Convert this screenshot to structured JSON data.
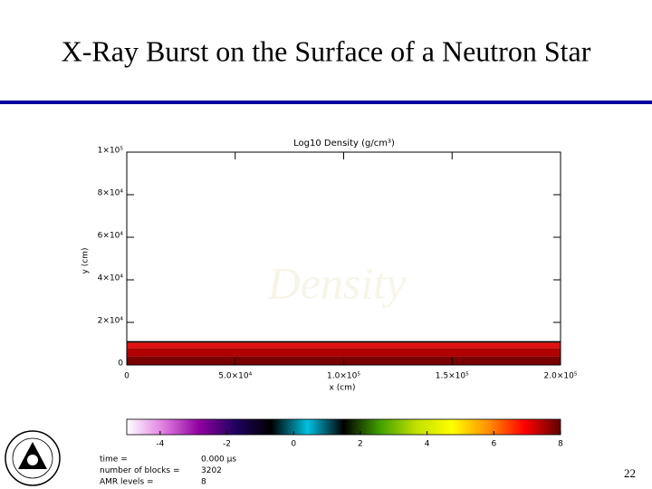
{
  "slide": {
    "title": "X-Ray Burst on the Surface of a Neutron Star",
    "page_number": "22",
    "rule_color": "#000099"
  },
  "chart_data": {
    "type": "density-map",
    "title": "Log10 Density (g/cm³)",
    "watermark": "Density",
    "x_label": "x (cm)",
    "y_label": "y (cm)",
    "xlim": [
      0,
      200000
    ],
    "ylim": [
      0,
      100000
    ],
    "xticks": [
      0,
      {
        "value": 50000,
        "label": "5.0×10⁴"
      },
      {
        "value": 100000,
        "label": "1.0×10⁵"
      },
      {
        "value": 150000,
        "label": "1.5×10⁵"
      },
      {
        "value": 200000,
        "label": "2.0×10⁵"
      }
    ],
    "yticks": [
      0,
      {
        "value": 20000,
        "label": "2×10⁴"
      },
      {
        "value": 40000,
        "label": "4×10⁴"
      },
      {
        "value": 60000,
        "label": "6×10⁴"
      },
      {
        "value": 80000,
        "label": "8×10⁴"
      },
      {
        "value": 100000,
        "label": "1×10⁵"
      }
    ],
    "layers": [
      {
        "y": [
          0,
          4000
        ],
        "value": 7.7,
        "color": "#7a0000"
      },
      {
        "y": [
          4000,
          8000
        ],
        "value": 7.2,
        "color": "#b00000"
      },
      {
        "y": [
          8000,
          10500
        ],
        "value": 6.5,
        "color": "#e01010"
      },
      {
        "y": [
          10500,
          11200
        ],
        "value": -2,
        "color": "#000000"
      }
    ],
    "colorbar": {
      "lim": [
        -5,
        8
      ],
      "ticks": [
        -4,
        -2,
        0,
        2,
        4,
        6,
        8
      ],
      "colors": [
        "#ffffff",
        "#e080e0",
        "#9000a0",
        "#200060",
        "#000000",
        "#00c0e0",
        "#000000",
        "#40a000",
        "#c0e000",
        "#ffff00",
        "#ff9000",
        "#ff0000",
        "#600000"
      ]
    },
    "info": [
      [
        "time =",
        "0.000 µs"
      ],
      [
        "number of blocks =",
        "3202"
      ],
      [
        "AMR levels =",
        "8"
      ]
    ]
  }
}
